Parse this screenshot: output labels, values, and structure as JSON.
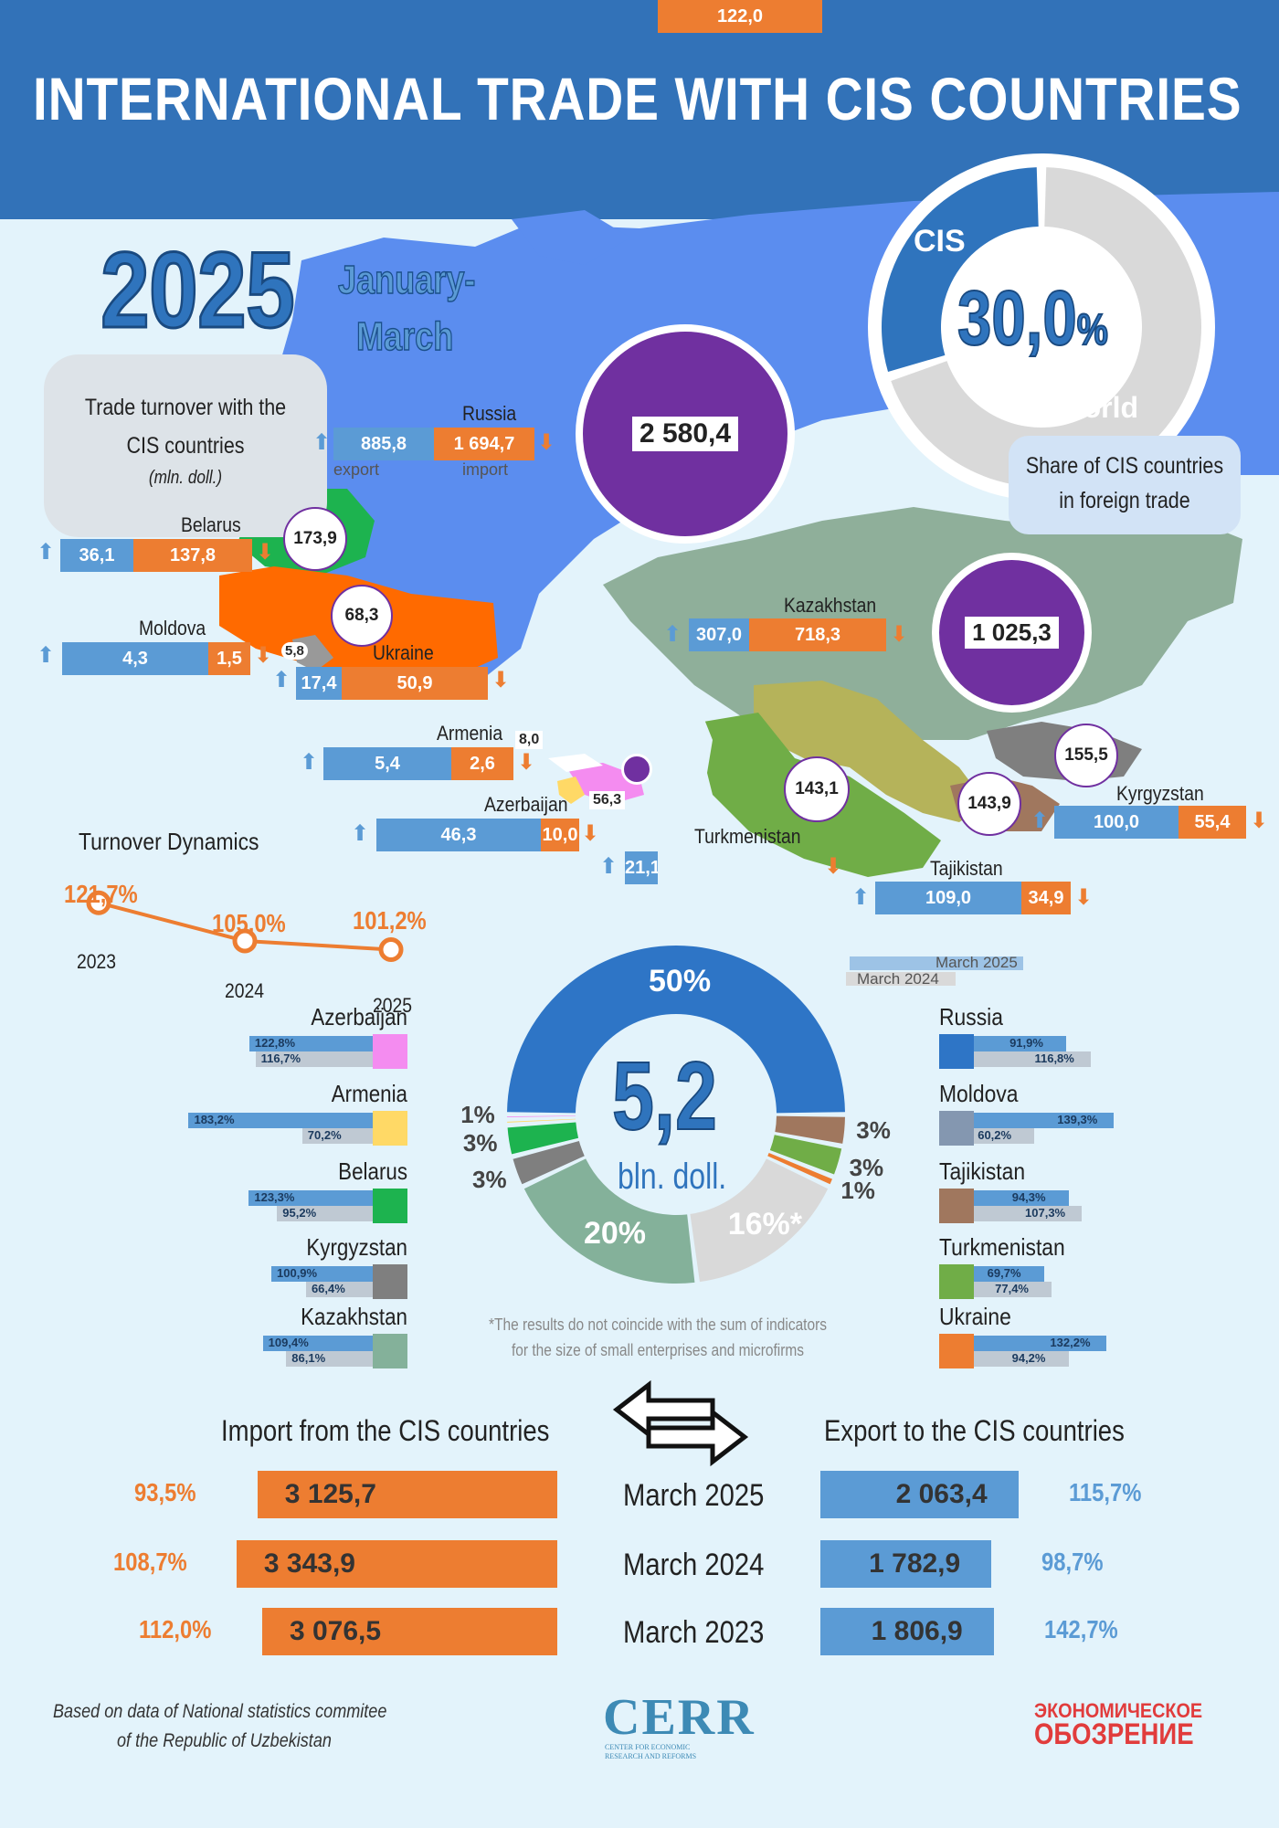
{
  "header": {
    "title": "INTERNATIONAL TRADE WITH CIS COUNTRIES"
  },
  "period": {
    "year": "2025",
    "months_line1": "January-",
    "months_line2": "March"
  },
  "share": {
    "cis_label": "CIS",
    "value": "30,0",
    "percent_sign": "%",
    "world_label": "World",
    "caption_line1": "Share of CIS countries",
    "caption_line2": "in foreign trade",
    "cis_fraction": 0.3
  },
  "turnover_box": {
    "line1": "Trade turnover with the",
    "line2": "CIS countries",
    "unit": "(mln. doll.)"
  },
  "legend": {
    "export": "export",
    "import": "import"
  },
  "countries_map": [
    {
      "name": "Russia",
      "export": "885,8",
      "import": "1 694,7",
      "total": "2 580,4"
    },
    {
      "name": "Belarus",
      "export": "36,1",
      "import": "137,8",
      "total": "173,9"
    },
    {
      "name": "Ukraine",
      "export": "17,4",
      "import": "50,9",
      "total": "68,3"
    },
    {
      "name": "Moldova",
      "export": "4,3",
      "import": "1,5",
      "total": "5,8"
    },
    {
      "name": "Armenia",
      "export": "5,4",
      "import": "2,6",
      "total": "8,0"
    },
    {
      "name": "Azerbaijan",
      "export": "46,3",
      "import": "10,0",
      "total": "56,3"
    },
    {
      "name": "Kazakhstan",
      "export": "307,0",
      "import": "718,3",
      "total": "1 025,3"
    },
    {
      "name": "Turkmenistan",
      "export": "21,1",
      "import": "122,0",
      "total": "143,1"
    },
    {
      "name": "Kyrgyzstan",
      "export": "100,0",
      "import": "55,4",
      "total": "155,5"
    },
    {
      "name": "Tajikistan",
      "export": "109,0",
      "import": "34,9",
      "total": "143,9"
    }
  ],
  "dynamics": {
    "title": "Turnover Dynamics",
    "points": [
      {
        "year": "2023",
        "label": "121,7%",
        "value": 121.7
      },
      {
        "year": "2024",
        "label": "105,0%",
        "value": 105.0
      },
      {
        "year": "2025",
        "label": "101,2%",
        "value": 101.2
      }
    ]
  },
  "march_legend": {
    "m2025": "March 2025",
    "m2024": "March 2024"
  },
  "donut": {
    "total": "5,2",
    "unit": "bln. doll.",
    "footnote_line1": "*The results do not coincide with the sum of indicators",
    "footnote_line2": "for the size of small enterprises and microfirms",
    "slices": [
      {
        "name": "Russia",
        "label": "50%",
        "value": 50,
        "color": "#2e75c6"
      },
      {
        "name": "Tajikistan",
        "label": "3%",
        "value": 3,
        "color": "#a0775e"
      },
      {
        "name": "Turkmenistan",
        "label": "3%",
        "value": 3,
        "color": "#70ad47"
      },
      {
        "name": "Ukraine",
        "label": "1%",
        "value": 1,
        "color": "#ed7d31"
      },
      {
        "name": "Others",
        "label": "16%*",
        "value": 16,
        "color": "#d9d9d9"
      },
      {
        "name": "Kazakhstan",
        "label": "20%",
        "value": 20,
        "color": "#84b19a"
      },
      {
        "name": "Kyrgyzstan",
        "label": "3%",
        "value": 3,
        "color": "#7f7f7f"
      },
      {
        "name": "Belarus",
        "label": "3%",
        "value": 3,
        "color": "#1db34f"
      },
      {
        "name": "Armenia",
        "label": "",
        "value": 0.5,
        "color": "#ffd966"
      },
      {
        "name": "Azerbaijan",
        "label": "1%",
        "value": 0.5,
        "color": "#f48cf0"
      }
    ]
  },
  "growth_left": [
    {
      "name": "Azerbaijan",
      "m2025": "122,8%",
      "m2024": "116,7%",
      "v2025": 122.8,
      "v2024": 116.7,
      "color": "#f48cf0"
    },
    {
      "name": "Armenia",
      "m2025": "183,2%",
      "m2024": "70,2%",
      "v2025": 183.2,
      "v2024": 70.2,
      "color": "#ffd966"
    },
    {
      "name": "Belarus",
      "m2025": "123,3%",
      "m2024": "95,2%",
      "v2025": 123.3,
      "v2024": 95.2,
      "color": "#1db34f"
    },
    {
      "name": "Kyrgyzstan",
      "m2025": "100,9%",
      "m2024": "66,4%",
      "v2025": 100.9,
      "v2024": 66.4,
      "color": "#7f7f7f"
    },
    {
      "name": "Kazakhstan",
      "m2025": "109,4%",
      "m2024": "86,1%",
      "v2025": 109.4,
      "v2024": 86.1,
      "color": "#84b19a"
    }
  ],
  "growth_right": [
    {
      "name": "Russia",
      "m2025": "91,9%",
      "m2024": "116,8%",
      "v2025": 91.9,
      "v2024": 116.8,
      "color": "#2e75c6"
    },
    {
      "name": "Moldova",
      "m2025": "139,3%",
      "m2024": "60,2%",
      "v2025": 139.3,
      "v2024": 60.2,
      "color": "#8497b0"
    },
    {
      "name": "Tajikistan",
      "m2025": "94,3%",
      "m2024": "107,3%",
      "v2025": 94.3,
      "v2024": 107.3,
      "color": "#a0775e"
    },
    {
      "name": "Turkmenistan",
      "m2025": "69,7%",
      "m2024": "77,4%",
      "v2025": 69.7,
      "v2024": 77.4,
      "color": "#70ad47"
    },
    {
      "name": "Ukraine",
      "m2025": "132,2%",
      "m2024": "94,2%",
      "v2025": 132.2,
      "v2024": 94.2,
      "color": "#ed7d31"
    }
  ],
  "trade": {
    "import_title": "Import from the CIS countries",
    "export_title": "Export to the CIS countries",
    "rows": [
      {
        "period": "March 2025",
        "import": "3 125,7",
        "import_value": 3125.7,
        "import_growth": "93,5%",
        "export": "2 063,4",
        "export_value": 2063.4,
        "export_growth": "115,7%"
      },
      {
        "period": "March 2024",
        "import": "3 343,9",
        "import_value": 3343.9,
        "import_growth": "108,7%",
        "export": "1 782,9",
        "export_value": 1782.9,
        "export_growth": "98,7%"
      },
      {
        "period": "March 2023",
        "import": "3 076,5",
        "import_value": 3076.5,
        "import_growth": "112,0%",
        "export": "1 806,9",
        "export_value": 1806.9,
        "export_growth": "142,7%"
      }
    ]
  },
  "footer": {
    "source_line1": "Based on data of National statistics commitee",
    "source_line2": "of the Republic of Uzbekistan",
    "logo_cerr": "CERR",
    "logo_cerr_sub1": "CENTER FOR ECONOMIC",
    "logo_cerr_sub2": "RESEARCH AND REFORMS",
    "logo_eo_line1": "ЭКОНОМИЧЕСКОЕ",
    "logo_eo_line2": "ОБОЗРЕНИЕ"
  },
  "colors": {
    "header": "#3272b8",
    "export": "#5b9bd5",
    "import": "#ed7d31",
    "bubble": "#7030a0",
    "russia_map": "#5b8def",
    "kazakh_map": "#8faf9a"
  }
}
